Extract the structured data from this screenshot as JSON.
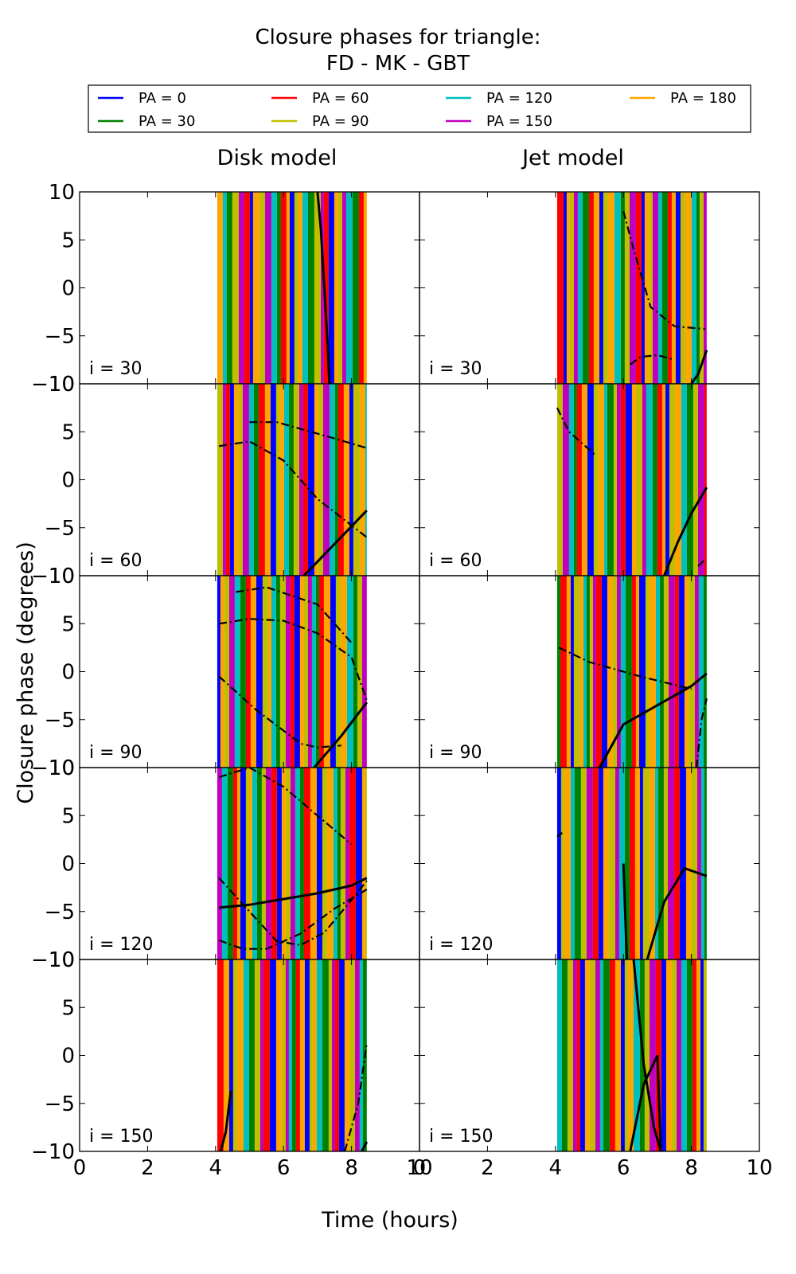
{
  "figure": {
    "title_line1": "Closure phases for triangle:",
    "title_line2": "FD - MK - GBT",
    "xlabel": "Time (hours)",
    "ylabel": "Closure phase (degrees)"
  },
  "colors": {
    "pa0": "#0000ff",
    "pa30": "#008000",
    "pa60": "#ff0000",
    "pa90": "#bfbf00",
    "pa120": "#00bfbf",
    "pa150": "#bf00bf",
    "pa180": "#ffa500",
    "model_line": "#000000"
  },
  "chart_data": {
    "type": "line",
    "title": "Closure phases for triangle:\nFD - MK - GBT",
    "xlabel": "Time (hours)",
    "ylabel": "Closure phase (degrees)",
    "xlim": [
      0,
      10
    ],
    "ylim": [
      -10,
      10
    ],
    "xticks": [
      "0",
      "2",
      "4",
      "6",
      "8",
      "10"
    ],
    "yticks": [
      "10",
      "5",
      "0",
      "−5",
      "−10"
    ],
    "grid": false,
    "legend_position": "top",
    "legend": [
      {
        "label": "PA = 0",
        "color": "#0000ff"
      },
      {
        "label": "PA = 30",
        "color": "#008000"
      },
      {
        "label": "PA = 60",
        "color": "#ff0000"
      },
      {
        "label": "PA = 90",
        "color": "#bfbf00"
      },
      {
        "label": "PA = 120",
        "color": "#00bfbf"
      },
      {
        "label": "PA = 150",
        "color": "#bf00bf"
      },
      {
        "label": "PA = 180",
        "color": "#ffa500"
      }
    ],
    "columns": [
      "Disk model",
      "Jet model"
    ],
    "rows": [
      "i = 30",
      "i = 60",
      "i = 90",
      "i = 120",
      "i = 150"
    ],
    "time_range_hours": [
      4.05,
      8.45
    ],
    "panels": [
      {
        "column": "Disk model",
        "row": "i = 30",
        "curves": [
          {
            "style": "solid",
            "x": [
              7.0,
              7.1,
              7.2,
              7.3,
              7.35
            ],
            "y": [
              10,
              6,
              0,
              -6,
              -10
            ]
          }
        ]
      },
      {
        "column": "Jet model",
        "row": "i = 30",
        "curves": [
          {
            "style": "solid",
            "x": [
              8.0,
              8.2,
              8.45
            ],
            "y": [
              -10,
              -9,
              -6.5
            ]
          },
          {
            "style": "dashdot",
            "x": [
              6.2,
              6.5,
              7.0,
              7.5
            ],
            "y": [
              -8,
              -7.2,
              -7.0,
              -7.5
            ]
          },
          {
            "style": "dashdot",
            "x": [
              6.0,
              6.3,
              6.8,
              7.5,
              8.4
            ],
            "y": [
              8,
              4,
              -2,
              -4,
              -4.3
            ]
          }
        ]
      },
      {
        "column": "Disk model",
        "row": "i = 60",
        "curves": [
          {
            "style": "solid",
            "x": [
              6.6,
              7.5,
              8.45
            ],
            "y": [
              -10,
              -6.7,
              -3.2
            ]
          },
          {
            "style": "dashdot",
            "x": [
              4.1,
              5.0,
              6.0,
              7.0,
              8.45
            ],
            "y": [
              3.5,
              4.0,
              2.0,
              -2.0,
              -6.0
            ]
          },
          {
            "style": "dashdot",
            "x": [
              5.0,
              5.8,
              6.5,
              7.5,
              8.45
            ],
            "y": [
              6.0,
              6.0,
              5.3,
              4.3,
              3.3
            ]
          }
        ]
      },
      {
        "column": "Jet model",
        "row": "i = 60",
        "curves": [
          {
            "style": "solid",
            "x": [
              7.2,
              7.6,
              8.0,
              8.45
            ],
            "y": [
              -10,
              -6.5,
              -3.5,
              -0.8
            ]
          },
          {
            "style": "dashdot",
            "x": [
              8.2,
              8.4
            ],
            "y": [
              -9,
              -8.3
            ]
          },
          {
            "style": "dashdot",
            "x": [
              4.05,
              4.4,
              5.2
            ],
            "y": [
              7.5,
              5.0,
              2.5
            ]
          }
        ]
      },
      {
        "column": "Disk model",
        "row": "i = 90",
        "curves": [
          {
            "style": "solid",
            "x": [
              6.9,
              7.7,
              8.45
            ],
            "y": [
              -10,
              -6.7,
              -3.2
            ]
          },
          {
            "style": "dashdot",
            "x": [
              4.1,
              5.0,
              6.0,
              7.0,
              8.0,
              8.45
            ],
            "y": [
              5.0,
              5.5,
              5.3,
              4.0,
              1.5,
              -3.0
            ]
          },
          {
            "style": "dashdot",
            "x": [
              4.1,
              5.2,
              6.5,
              7.0,
              7.7
            ],
            "y": [
              -0.5,
              -4.0,
              -7.5,
              -7.9,
              -7.7
            ]
          },
          {
            "style": "dashdot",
            "x": [
              4.6,
              5.5,
              7.0,
              8.0
            ],
            "y": [
              8.3,
              8.8,
              7.0,
              3.0
            ]
          }
        ]
      },
      {
        "column": "Jet model",
        "row": "i = 90",
        "curves": [
          {
            "style": "solid",
            "x": [
              5.3,
              6.0,
              7.0,
              8.0,
              8.45
            ],
            "y": [
              -10,
              -5.5,
              -3.5,
              -1.5,
              -0.2
            ]
          },
          {
            "style": "dashdot",
            "x": [
              8.15,
              8.3,
              8.45
            ],
            "y": [
              -10,
              -5,
              -2.8
            ]
          },
          {
            "style": "dashdot",
            "x": [
              4.1,
              5.0,
              6.5,
              8.0
            ],
            "y": [
              2.5,
              1.0,
              -0.5,
              -1.8
            ]
          }
        ]
      },
      {
        "column": "Disk model",
        "row": "i = 120",
        "curves": [
          {
            "style": "solid",
            "x": [
              4.1,
              5.0,
              6.0,
              7.0,
              8.0,
              8.45
            ],
            "y": [
              -4.6,
              -4.3,
              -3.7,
              -3.1,
              -2.3,
              -1.5
            ]
          },
          {
            "style": "dashdot",
            "x": [
              4.1,
              4.8,
              5.5,
              6.5,
              7.5,
              8.45
            ],
            "y": [
              -8.0,
              -8.9,
              -8.9,
              -7.3,
              -4.7,
              -2.7
            ]
          },
          {
            "style": "dashdot",
            "x": [
              4.1,
              5.0,
              5.8,
              6.5,
              7.2,
              8.0,
              8.45
            ],
            "y": [
              -1.5,
              -5.0,
              -8.1,
              -8.5,
              -7.2,
              -3.8,
              -1.8
            ]
          },
          {
            "style": "dashdot",
            "x": [
              4.1,
              5.0,
              6.0,
              7.0,
              8.0
            ],
            "y": [
              9.0,
              10.0,
              8.0,
              5.0,
              2.0
            ]
          }
        ]
      },
      {
        "column": "Jet model",
        "row": "i = 120",
        "curves": [
          {
            "style": "solid",
            "x": [
              6.7,
              7.2,
              7.8,
              8.2,
              8.45
            ],
            "y": [
              -10,
              -4.0,
              -0.5,
              -1.0,
              -1.3
            ]
          },
          {
            "style": "solid",
            "x": [
              6.0,
              6.1
            ],
            "y": [
              0.0,
              -10
            ]
          },
          {
            "style": "dashdot",
            "x": [
              4.05,
              4.2
            ],
            "y": [
              2.8,
              3.2
            ]
          }
        ]
      },
      {
        "column": "Disk model",
        "row": "i = 150",
        "curves": [
          {
            "style": "solid",
            "x": [
              4.15,
              4.3,
              4.45
            ],
            "y": [
              -10,
              -8.0,
              -3.7
            ]
          },
          {
            "style": "dashdot",
            "x": [
              7.8,
              8.2,
              8.45
            ],
            "y": [
              -10,
              -5,
              1.3
            ]
          },
          {
            "style": "solid",
            "x": [
              8.3,
              8.45
            ],
            "y": [
              -10,
              -9.0
            ]
          }
        ]
      },
      {
        "column": "Jet model",
        "row": "i = 150",
        "curves": [
          {
            "style": "solid",
            "x": [
              6.2,
              6.6,
              7.0,
              7.1
            ],
            "y": [
              -10,
              -3.0,
              0.0,
              -10
            ]
          },
          {
            "style": "solid",
            "x": [
              6.3,
              6.6,
              6.9,
              7.1
            ],
            "y": [
              10,
              -1.0,
              -7.5,
              -10
            ]
          }
        ]
      }
    ]
  }
}
